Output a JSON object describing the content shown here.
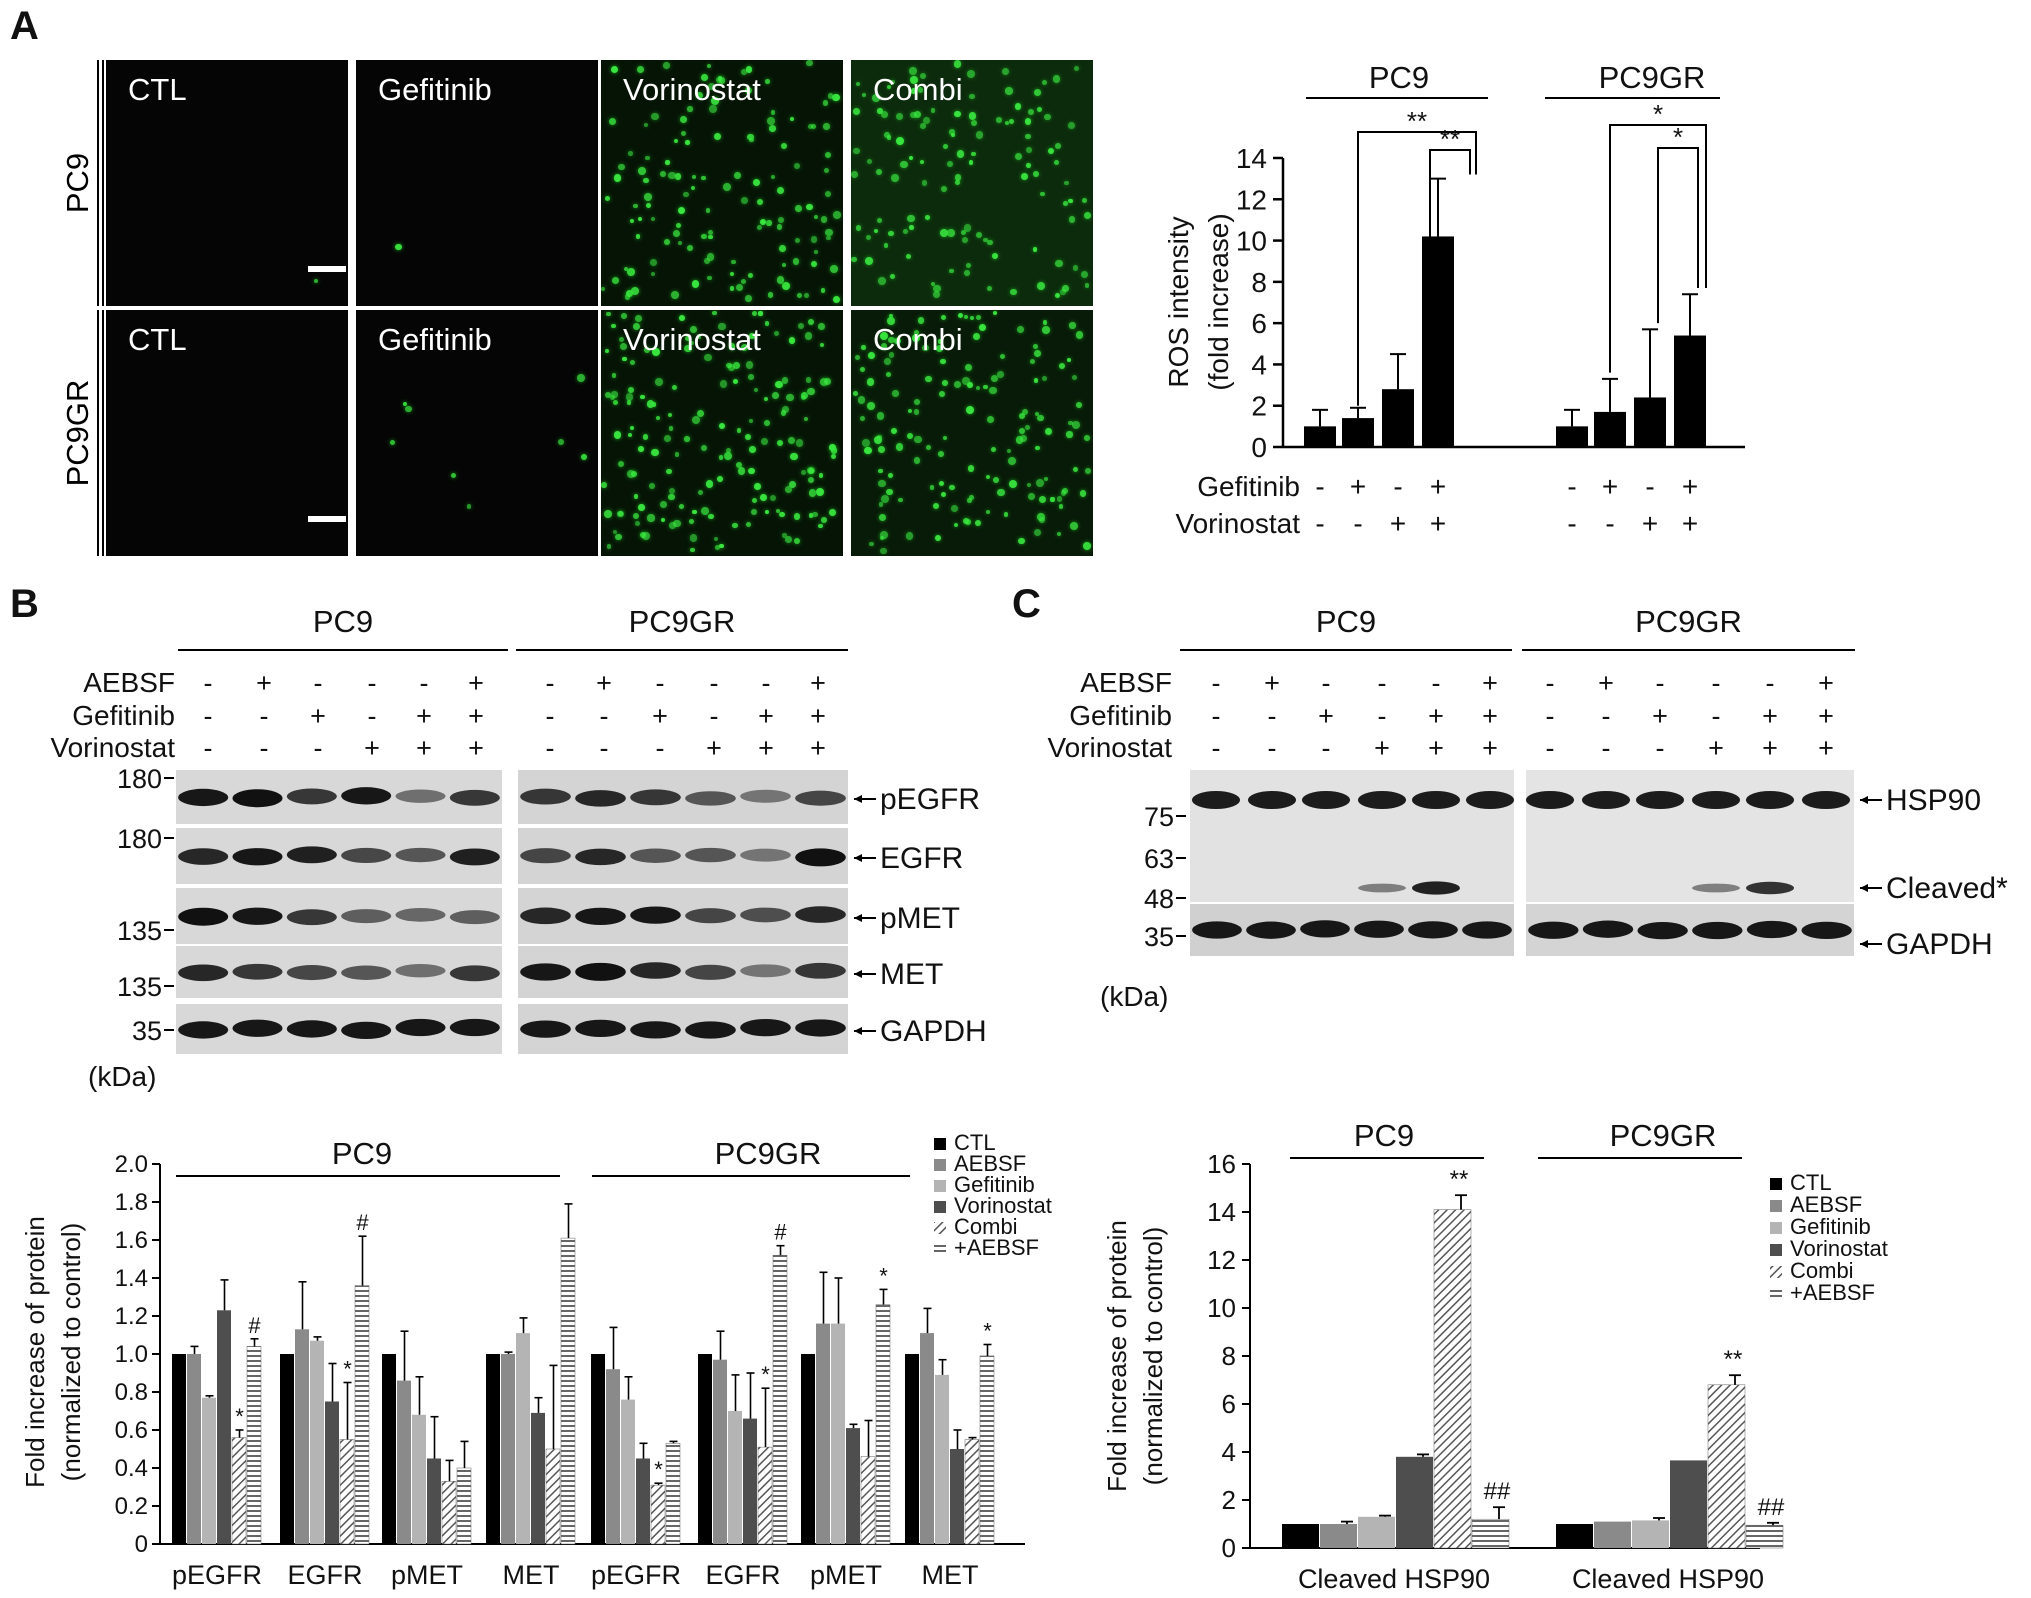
{
  "panel_a": {
    "letter": "A",
    "micro": {
      "col_labels": [
        "CTL",
        "Gefitinib",
        "Vorinostat",
        "Combi"
      ],
      "row_labels": [
        "PC9",
        "PC9GR"
      ]
    },
    "ros_chart": {
      "groups": [
        "PC9",
        "PC9GR"
      ],
      "ylabel_1": "ROS intensity",
      "ylabel_2": "(fold increase)",
      "yticks": [
        "0",
        "2",
        "4",
        "6",
        "8",
        "10",
        "12",
        "14"
      ],
      "row1_label": "Gefitinib",
      "row2_label": "Vorinostat",
      "row1_signs": [
        "-",
        "+",
        "-",
        "+",
        "-",
        "+",
        "-",
        "+"
      ],
      "row2_signs": [
        "-",
        "-",
        "+",
        "+",
        "-",
        "-",
        "+",
        "+"
      ],
      "sig_pc9": [
        "**",
        "**"
      ],
      "sig_pc9gr": [
        "*",
        "*"
      ]
    }
  },
  "panel_b": {
    "letter": "B",
    "groups": [
      "PC9",
      "PC9GR"
    ],
    "treat_labels": [
      "AEBSF",
      "Gefitinib",
      "Vorinostat"
    ],
    "aebsf": [
      "-",
      "+",
      "-",
      "-",
      "-",
      "+"
    ],
    "gefitinib": [
      "-",
      "-",
      "+",
      "-",
      "+",
      "+"
    ],
    "vorinostat": [
      "-",
      "-",
      "-",
      "+",
      "+",
      "+"
    ],
    "mw": [
      "180",
      "180",
      "135",
      "135",
      "35"
    ],
    "bands": [
      "pEGFR",
      "EGFR",
      "pMET",
      "MET",
      "GAPDH"
    ],
    "kda": "(kDa)",
    "bar": {
      "ylabel_1": "Fold increase of protein",
      "ylabel_2": "(normalized to control)",
      "yticks": [
        "0",
        "0.2",
        "0.4",
        "0.6",
        "0.8",
        "1.0",
        "1.2",
        "1.4",
        "1.6",
        "1.8",
        "2.0"
      ],
      "groups": [
        "PC9",
        "PC9GR"
      ],
      "categories": [
        "pEGFR",
        "EGFR",
        "pMET",
        "MET",
        "pEGFR",
        "EGFR",
        "pMET",
        "MET"
      ],
      "legend": [
        "CTL",
        "AEBSF",
        "Gefitinib",
        "Vorinostat",
        "Combi",
        "+AEBSF"
      ],
      "marks": [
        "*",
        "#",
        "*",
        "#",
        "*",
        "*",
        "#",
        "*",
        "*"
      ]
    }
  },
  "panel_c": {
    "letter": "C",
    "groups": [
      "PC9",
      "PC9GR"
    ],
    "treat_labels": [
      "AEBSF",
      "Gefitinib",
      "Vorinostat"
    ],
    "aebsf": [
      "-",
      "+",
      "-",
      "-",
      "-",
      "+"
    ],
    "gefitinib": [
      "-",
      "-",
      "+",
      "-",
      "+",
      "+"
    ],
    "vorinostat": [
      "-",
      "-",
      "-",
      "+",
      "+",
      "+"
    ],
    "mw": [
      "75",
      "63",
      "48",
      "35"
    ],
    "bands": [
      "HSP90",
      "Cleaved*",
      "GAPDH"
    ],
    "kda": "(kDa)",
    "bar": {
      "ylabel_1": "Fold increase of protein",
      "ylabel_2": "(normalized to control)",
      "yticks": [
        "0",
        "2",
        "4",
        "6",
        "8",
        "10",
        "12",
        "14",
        "16"
      ],
      "groups": [
        "PC9",
        "PC9GR"
      ],
      "categories": [
        "Cleaved HSP90",
        "Cleaved HSP90"
      ],
      "legend": [
        "CTL",
        "AEBSF",
        "Gefitinib",
        "Vorinostat",
        "Combi",
        "+AEBSF"
      ],
      "marks": [
        "**",
        "##",
        "**",
        "##"
      ]
    }
  },
  "chart_data": [
    {
      "type": "bar",
      "ylabel": "ROS intensity (fold increase)",
      "ylim": [
        0,
        14
      ],
      "categories": [
        "PC9",
        "PC9GR"
      ],
      "series": [
        {
          "name": "CTL",
          "values": [
            1.0,
            1.0
          ],
          "errors": [
            0.8,
            0.8
          ]
        },
        {
          "name": "Gefitinib",
          "values": [
            1.4,
            1.7
          ],
          "errors": [
            0.5,
            1.6
          ]
        },
        {
          "name": "Vorinostat",
          "values": [
            2.8,
            2.4
          ],
          "errors": [
            1.7,
            3.3
          ]
        },
        {
          "name": "Combi",
          "values": [
            10.2,
            5.4
          ],
          "errors": [
            2.8,
            2.0
          ]
        }
      ]
    },
    {
      "type": "bar",
      "ylabel": "Fold increase of protein (normalized to control)",
      "ylim": [
        0,
        2.0
      ],
      "categories": [
        "pEGFR",
        "EGFR",
        "pMET",
        "MET",
        "pEGFR",
        "EGFR",
        "pMET",
        "MET"
      ],
      "series": [
        {
          "name": "CTL",
          "values": [
            1.0,
            1.0,
            1.0,
            1.0,
            1.0,
            1.0,
            1.0,
            1.0
          ],
          "errors": [
            0,
            0,
            0,
            0,
            0,
            0,
            0,
            0
          ]
        },
        {
          "name": "AEBSF",
          "values": [
            1.0,
            1.13,
            0.86,
            1.0,
            0.92,
            0.97,
            1.16,
            1.11
          ],
          "errors": [
            0.04,
            0.25,
            0.26,
            0.01,
            0.22,
            0.15,
            0.27,
            0.13
          ]
        },
        {
          "name": "Gefitinib",
          "values": [
            0.77,
            1.07,
            0.68,
            1.11,
            0.76,
            0.7,
            1.16,
            0.89
          ],
          "errors": [
            0.01,
            0.02,
            0.2,
            0.08,
            0.12,
            0.19,
            0.24,
            0.08
          ]
        },
        {
          "name": "Vorinostat",
          "values": [
            1.23,
            0.75,
            0.45,
            0.69,
            0.45,
            0.66,
            0.61,
            0.5
          ],
          "errors": [
            0.16,
            0.2,
            0.22,
            0.08,
            0.08,
            0.24,
            0.02,
            0.1
          ]
        },
        {
          "name": "Combi",
          "values": [
            0.56,
            0.55,
            0.33,
            0.5,
            0.31,
            0.51,
            0.46,
            0.55
          ],
          "errors": [
            0.04,
            0.3,
            0.11,
            0.44,
            0.01,
            0.31,
            0.19,
            0.01
          ]
        },
        {
          "name": "+AEBSF",
          "values": [
            1.04,
            1.36,
            0.4,
            1.61,
            0.53,
            1.52,
            1.26,
            0.99
          ],
          "errors": [
            0.04,
            0.26,
            0.14,
            0.18,
            0.01,
            0.05,
            0.08,
            0.06
          ]
        }
      ]
    },
    {
      "type": "bar",
      "ylabel": "Fold increase of protein (normalized to control)",
      "ylim": [
        0,
        16
      ],
      "categories": [
        "Cleaved HSP90",
        "Cleaved HSP90"
      ],
      "series": [
        {
          "name": "CTL",
          "values": [
            1.0,
            1.0
          ],
          "errors": [
            0,
            0
          ]
        },
        {
          "name": "AEBSF",
          "values": [
            1.0,
            1.1
          ],
          "errors": [
            0.1,
            0
          ]
        },
        {
          "name": "Gefitinib",
          "values": [
            1.3,
            1.15
          ],
          "errors": [
            0.05,
            0.1
          ]
        },
        {
          "name": "Vorinostat",
          "values": [
            3.8,
            3.65
          ],
          "errors": [
            0.1,
            0
          ]
        },
        {
          "name": "Combi",
          "values": [
            14.1,
            6.8
          ],
          "errors": [
            0.6,
            0.4
          ]
        },
        {
          "name": "+AEBSF",
          "values": [
            1.2,
            0.95
          ],
          "errors": [
            0.5,
            0.1
          ]
        }
      ]
    }
  ]
}
